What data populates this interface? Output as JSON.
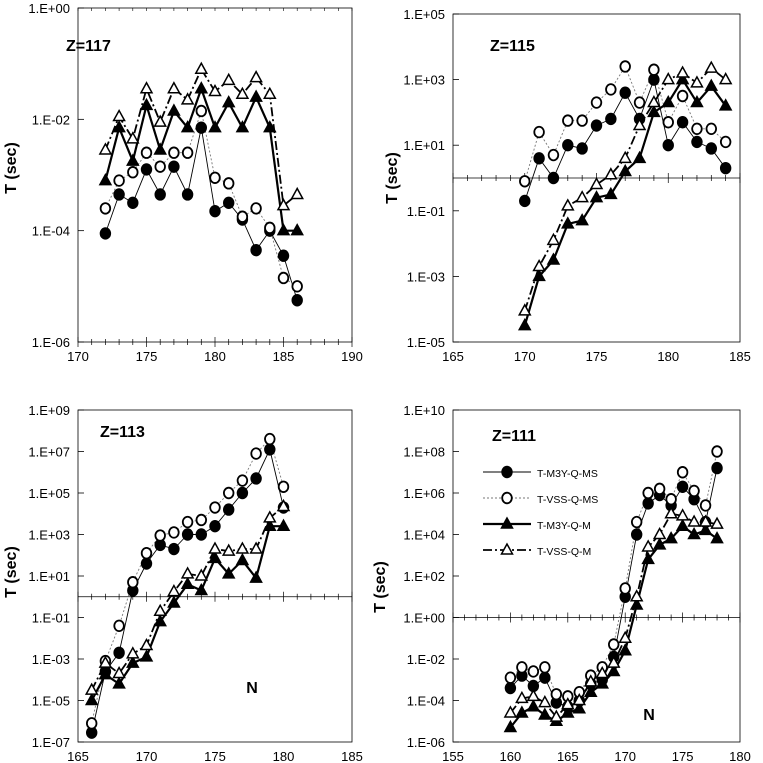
{
  "legend": [
    {
      "name": "T-M3Y-Q-MS"
    },
    {
      "name": "T-VSS-Q-MS"
    },
    {
      "name": "T-M3Y-Q-M"
    },
    {
      "name": "T-VSS-Q-M"
    }
  ],
  "chart_data": [
    {
      "type": "line",
      "title": "Z=117",
      "ylabel": "T (sec)",
      "xlabel": "",
      "xlim": [
        170,
        190
      ],
      "xticks": [
        170,
        175,
        180,
        185,
        190
      ],
      "xtick_labels": [
        "170",
        "175",
        "180",
        "185",
        "190"
      ],
      "ylim_log10": [
        -6,
        0
      ],
      "yticks_log10": [
        0,
        -2,
        -4,
        -6
      ],
      "ytick_labels": [
        "1.E+00",
        "1.E-02",
        "1.E-04",
        "1.E-06"
      ],
      "x_axis_at_log10": null,
      "series": [
        {
          "name": "T-M3Y-Q-MS",
          "x": [
            172,
            173,
            174,
            175,
            176,
            177,
            178,
            179,
            180,
            181,
            182,
            183,
            184,
            185,
            186
          ],
          "log10_values": [
            -4.05,
            -3.35,
            -3.5,
            -2.9,
            -3.35,
            -2.85,
            -3.35,
            -2.15,
            -3.65,
            -3.5,
            -3.8,
            -4.35,
            -4.0,
            -4.45,
            -5.25
          ]
        },
        {
          "name": "T-VSS-Q-MS",
          "x": [
            172,
            173,
            174,
            175,
            176,
            177,
            178,
            179,
            180,
            181,
            182,
            183,
            184,
            185,
            186
          ],
          "log10_values": [
            -3.6,
            -3.1,
            -2.95,
            -2.6,
            -2.85,
            -2.6,
            -2.6,
            -1.85,
            -3.05,
            -3.15,
            -3.75,
            -3.6,
            -3.95,
            -4.85,
            -5.0
          ]
        },
        {
          "name": "T-M3Y-Q-M",
          "x": [
            172,
            173,
            174,
            175,
            176,
            177,
            178,
            179,
            180,
            181,
            182,
            183,
            184,
            185,
            186
          ],
          "log10_values": [
            -3.1,
            -2.15,
            -2.75,
            -1.75,
            -2.55,
            -1.85,
            -2.15,
            -1.45,
            -2.15,
            -1.7,
            -2.15,
            -1.6,
            -2.15,
            -4.0,
            -4.0
          ]
        },
        {
          "name": "T-VSS-Q-M",
          "x": [
            172,
            173,
            174,
            175,
            176,
            177,
            178,
            179,
            180,
            181,
            182,
            183,
            184,
            185,
            186
          ],
          "log10_values": [
            -2.55,
            -1.95,
            -2.35,
            -1.45,
            -2.05,
            -1.45,
            -1.65,
            -1.1,
            -1.5,
            -1.3,
            -1.55,
            -1.25,
            -1.55,
            -3.55,
            -3.35
          ]
        }
      ]
    },
    {
      "type": "line",
      "title": "Z=115",
      "ylabel": "T (sec)",
      "xlabel": "",
      "xlim": [
        165,
        185
      ],
      "xticks": [
        165,
        170,
        175,
        180,
        185
      ],
      "xtick_labels": [
        "165",
        "170",
        "175",
        "180",
        "185"
      ],
      "ylim_log10": [
        -5,
        5
      ],
      "yticks_log10": [
        5,
        3,
        1,
        -1,
        -3,
        -5
      ],
      "ytick_labels": [
        "1.E+05",
        "1.E+03",
        "1.E+01",
        "1.E-01",
        "1.E-03",
        "1.E-05"
      ],
      "x_axis_at_log10": 0,
      "series": [
        {
          "name": "T-M3Y-Q-MS",
          "x": [
            170,
            171,
            172,
            173,
            174,
            175,
            176,
            177,
            178,
            179,
            180,
            181,
            182,
            183,
            184
          ],
          "log10_values": [
            -0.7,
            0.6,
            0.0,
            1.0,
            0.9,
            1.6,
            1.8,
            2.6,
            1.8,
            3.0,
            1.0,
            1.7,
            1.1,
            0.9,
            0.3
          ]
        },
        {
          "name": "T-VSS-Q-MS",
          "x": [
            170,
            171,
            172,
            173,
            174,
            175,
            176,
            177,
            178,
            179,
            180,
            181,
            182,
            183,
            184
          ],
          "log10_values": [
            -0.1,
            1.4,
            0.7,
            1.75,
            1.75,
            2.3,
            2.7,
            3.4,
            2.3,
            3.3,
            1.7,
            2.5,
            1.5,
            1.5,
            1.1
          ]
        },
        {
          "name": "T-M3Y-Q-M",
          "x": [
            170,
            171,
            172,
            173,
            174,
            175,
            176,
            177,
            178,
            179,
            180,
            181,
            182,
            183,
            184
          ],
          "log10_values": [
            -4.5,
            -3.0,
            -2.5,
            -1.4,
            -1.3,
            -0.6,
            -0.5,
            0.2,
            0.6,
            2.0,
            2.3,
            3.0,
            2.3,
            2.8,
            2.2
          ]
        },
        {
          "name": "T-VSS-Q-M",
          "x": [
            170,
            171,
            172,
            173,
            174,
            175,
            176,
            177,
            178,
            179,
            180,
            181,
            182,
            183,
            184
          ],
          "log10_values": [
            -4.05,
            -2.7,
            -1.9,
            -0.85,
            -0.6,
            -0.2,
            0.1,
            0.6,
            1.6,
            2.3,
            3.0,
            3.2,
            2.9,
            3.35,
            3.0
          ]
        }
      ]
    },
    {
      "type": "line",
      "title": "Z=113",
      "ylabel": "T (sec)",
      "xlabel": "N",
      "xlim": [
        165,
        185
      ],
      "xticks": [
        165,
        170,
        175,
        180,
        185
      ],
      "xtick_labels": [
        "165",
        "170",
        "175",
        "180",
        "185"
      ],
      "ylim_log10": [
        -7,
        9
      ],
      "yticks_log10": [
        9,
        7,
        5,
        3,
        1,
        -1,
        -3,
        -5,
        -7
      ],
      "ytick_labels": [
        "1.E+09",
        "1.E+07",
        "1.E+05",
        "1.E+03",
        "1.E+01",
        "1.E-01",
        "1.E-03",
        "1.E-05",
        "1.E-07"
      ],
      "x_axis_at_log10": 0,
      "series": [
        {
          "name": "T-M3Y-Q-MS",
          "x": [
            166,
            167,
            168,
            169,
            170,
            171,
            172,
            173,
            174,
            175,
            176,
            177,
            178,
            179,
            180
          ],
          "log10_values": [
            -6.55,
            -3.6,
            -2.7,
            0.3,
            1.6,
            2.5,
            2.3,
            3.0,
            3.0,
            3.4,
            4.2,
            5.0,
            5.7,
            7.1,
            4.3
          ]
        },
        {
          "name": "T-VSS-Q-MS",
          "x": [
            166,
            167,
            168,
            169,
            170,
            171,
            172,
            173,
            174,
            175,
            176,
            177,
            178,
            179,
            180
          ],
          "log10_values": [
            -6.1,
            -3.1,
            -1.4,
            0.7,
            2.1,
            2.95,
            3.1,
            3.6,
            3.7,
            4.3,
            5.0,
            5.6,
            6.9,
            7.6,
            5.3
          ]
        },
        {
          "name": "T-M3Y-Q-M",
          "x": [
            166,
            167,
            168,
            169,
            170,
            171,
            172,
            173,
            174,
            175,
            176,
            177,
            178,
            179,
            180
          ],
          "log10_values": [
            -5.0,
            -3.75,
            -4.2,
            -3.2,
            -2.9,
            -1.2,
            -0.3,
            0.6,
            0.3,
            1.85,
            1.1,
            1.75,
            0.9,
            3.4,
            3.4
          ]
        },
        {
          "name": "T-VSS-Q-M",
          "x": [
            166,
            167,
            168,
            169,
            170,
            171,
            172,
            173,
            174,
            175,
            176,
            177,
            178,
            179,
            180
          ],
          "log10_values": [
            -4.5,
            -3.2,
            -3.7,
            -2.75,
            -2.35,
            -0.7,
            0.25,
            1.1,
            1.0,
            2.3,
            2.2,
            2.3,
            2.3,
            3.8,
            4.35
          ]
        }
      ]
    },
    {
      "type": "line",
      "title": "Z=111",
      "ylabel": "T (sec)",
      "xlabel": "N",
      "xlim": [
        155,
        180
      ],
      "xticks": [
        155,
        160,
        165,
        170,
        175,
        180
      ],
      "xtick_labels": [
        "155",
        "160",
        "165",
        "170",
        "175",
        "180"
      ],
      "ylim_log10": [
        -6,
        10
      ],
      "yticks_log10": [
        10,
        8,
        6,
        4,
        2,
        0,
        -2,
        -4,
        -6
      ],
      "ytick_labels": [
        "1.E+10",
        "1.E+08",
        "1.E+06",
        "1.E+04",
        "1.E+02",
        "1.E+00",
        "1.E-02",
        "1.E-04",
        "1.E-06"
      ],
      "x_axis_at_log10": 0,
      "series": [
        {
          "name": "T-M3Y-Q-MS",
          "x": [
            160,
            161,
            162,
            163,
            164,
            165,
            166,
            167,
            168,
            169,
            170,
            171,
            172,
            173,
            174,
            175,
            176,
            177,
            178
          ],
          "log10_values": [
            -3.4,
            -2.8,
            -3.3,
            -2.9,
            -4.1,
            -4.3,
            -4.0,
            -3.2,
            -3.0,
            -1.9,
            1.0,
            4.0,
            5.5,
            5.9,
            5.4,
            6.3,
            5.7,
            4.6,
            7.2
          ]
        },
        {
          "name": "T-VSS-Q-MS",
          "x": [
            160,
            161,
            162,
            163,
            164,
            165,
            166,
            167,
            168,
            169,
            170,
            171,
            172,
            173,
            174,
            175,
            176,
            177,
            178
          ],
          "log10_values": [
            -2.9,
            -2.4,
            -2.6,
            -2.4,
            -3.7,
            -3.8,
            -3.6,
            -2.8,
            -2.4,
            -1.3,
            1.4,
            4.6,
            6.0,
            6.2,
            5.7,
            7.0,
            6.1,
            5.4,
            8.0
          ]
        },
        {
          "name": "T-M3Y-Q-M",
          "x": [
            160,
            161,
            162,
            163,
            164,
            165,
            166,
            167,
            168,
            169,
            170,
            171,
            172,
            173,
            174,
            175,
            176,
            177,
            178
          ],
          "log10_values": [
            -5.3,
            -4.6,
            -4.3,
            -4.7,
            -5.0,
            -4.6,
            -4.4,
            -3.6,
            -3.2,
            -2.6,
            -1.6,
            0.6,
            2.8,
            3.5,
            3.8,
            4.4,
            4.0,
            4.2,
            3.8
          ]
        },
        {
          "name": "T-VSS-Q-M",
          "x": [
            160,
            161,
            162,
            163,
            164,
            165,
            166,
            167,
            168,
            169,
            170,
            171,
            172,
            173,
            174,
            175,
            176,
            177,
            178
          ],
          "log10_values": [
            -4.6,
            -3.9,
            -3.8,
            -4.1,
            -4.8,
            -4.2,
            -4.0,
            -3.1,
            -2.7,
            -2.2,
            -1.0,
            1.0,
            3.4,
            4.0,
            5.0,
            4.9,
            4.6,
            4.6,
            4.5
          ]
        }
      ]
    }
  ]
}
